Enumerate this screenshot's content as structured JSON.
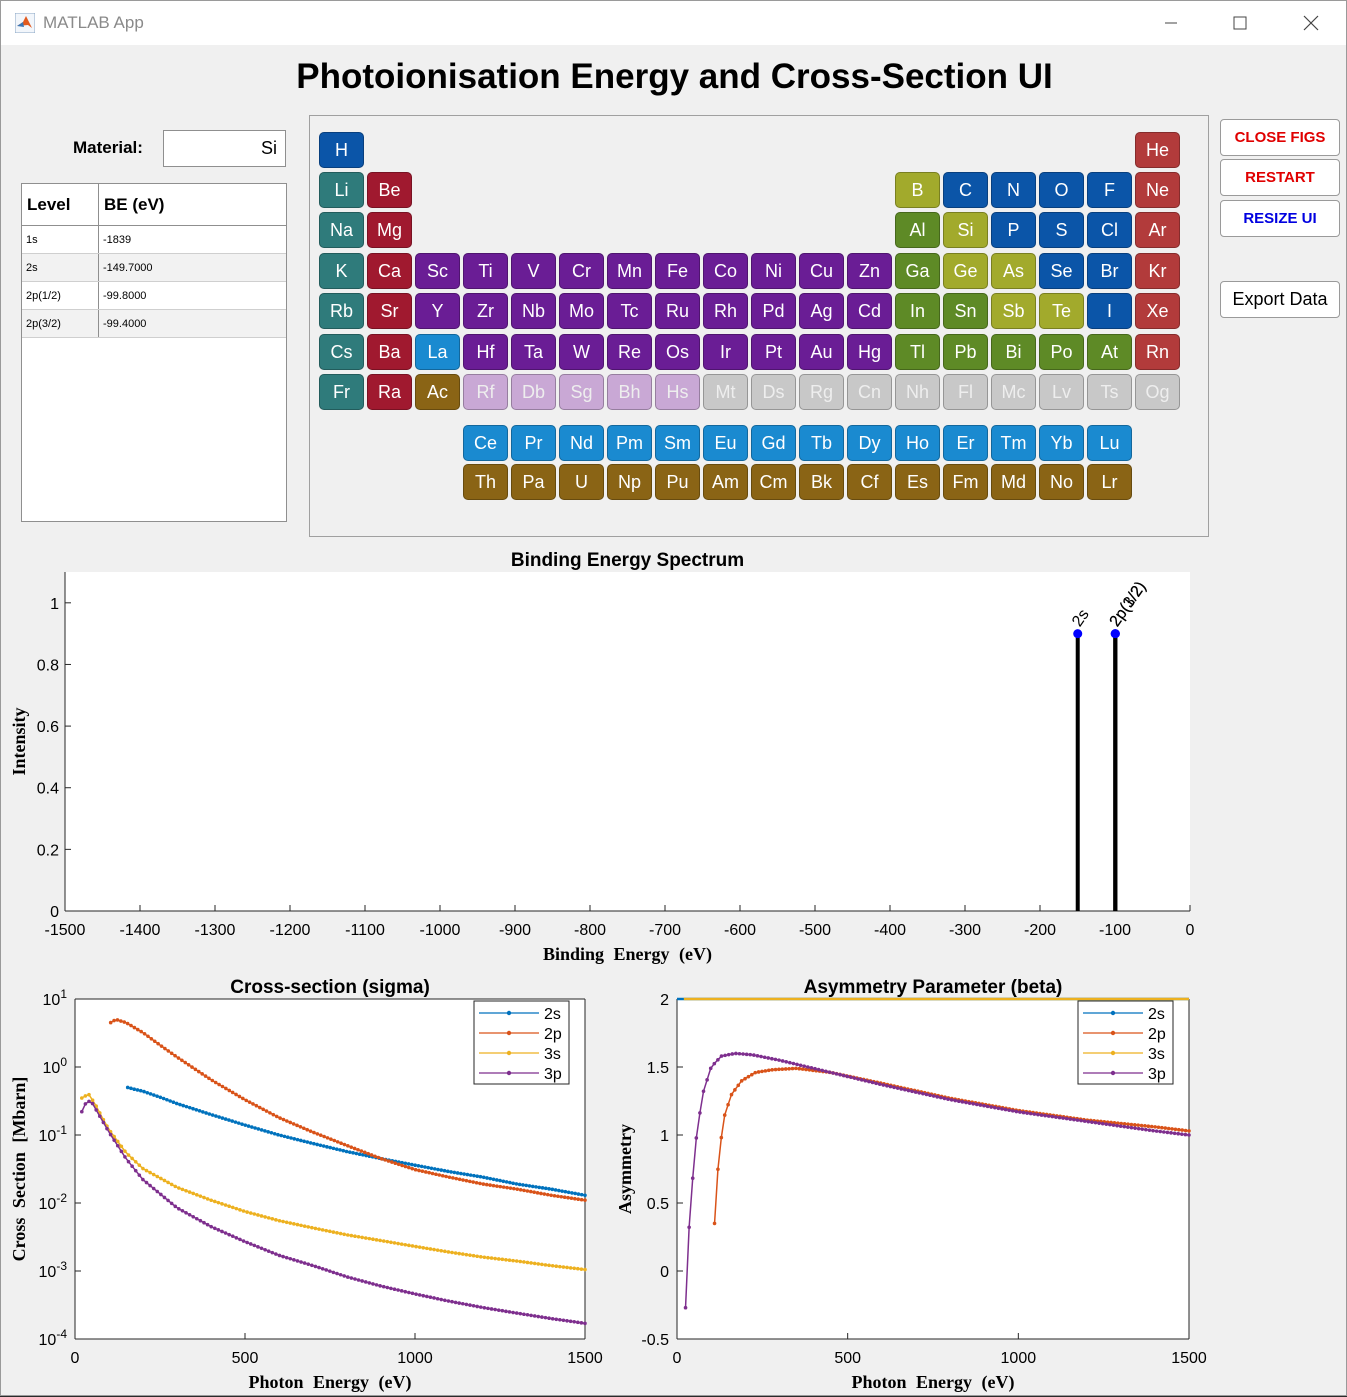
{
  "window": {
    "title": "MATLAB App"
  },
  "app": {
    "title": "Photoionisation Energy and Cross-Section UI"
  },
  "material": {
    "label": "Material:",
    "value": "Si"
  },
  "be_table": {
    "headers": [
      "Level",
      "BE (eV)"
    ],
    "rows": [
      [
        "1s",
        "-1839"
      ],
      [
        "2s",
        "-149.7000"
      ],
      [
        "2p(1/2)",
        "-99.8000"
      ],
      [
        "2p(3/2)",
        "-99.4000"
      ]
    ]
  },
  "buttons": {
    "close": "CLOSE FIGS",
    "restart": "RESTART",
    "resize": "RESIZE UI",
    "export": "Export Data"
  },
  "button_colors": {
    "close": "#e00000",
    "restart": "#e00000",
    "resize": "#0000e0",
    "export": "#000000"
  },
  "category_colors": {
    "nonmetal": "#0b55a8",
    "noble": "#b23b3b",
    "alkali": "#2f7b7b",
    "alkaline": "#a0192f",
    "transition": "#6a1d95",
    "posttransition": "#5e8a26",
    "metalloid": "#a2aa2c",
    "synthetic": "#c9a8d5",
    "unknown": "#c8c8c8",
    "lanthanide": "#1a8ad0",
    "actinide": "#8a6415"
  },
  "periodic_table": [
    {
      "s": "H",
      "row": 0,
      "col": 0,
      "cat": "nonmetal"
    },
    {
      "s": "He",
      "row": 0,
      "col": 17,
      "cat": "noble"
    },
    {
      "s": "Li",
      "row": 1,
      "col": 0,
      "cat": "alkali"
    },
    {
      "s": "Be",
      "row": 1,
      "col": 1,
      "cat": "alkaline"
    },
    {
      "s": "B",
      "row": 1,
      "col": 12,
      "cat": "metalloid"
    },
    {
      "s": "C",
      "row": 1,
      "col": 13,
      "cat": "nonmetal"
    },
    {
      "s": "N",
      "row": 1,
      "col": 14,
      "cat": "nonmetal"
    },
    {
      "s": "O",
      "row": 1,
      "col": 15,
      "cat": "nonmetal"
    },
    {
      "s": "F",
      "row": 1,
      "col": 16,
      "cat": "nonmetal"
    },
    {
      "s": "Ne",
      "row": 1,
      "col": 17,
      "cat": "noble"
    },
    {
      "s": "Na",
      "row": 2,
      "col": 0,
      "cat": "alkali"
    },
    {
      "s": "Mg",
      "row": 2,
      "col": 1,
      "cat": "alkaline"
    },
    {
      "s": "Al",
      "row": 2,
      "col": 12,
      "cat": "posttransition"
    },
    {
      "s": "Si",
      "row": 2,
      "col": 13,
      "cat": "metalloid"
    },
    {
      "s": "P",
      "row": 2,
      "col": 14,
      "cat": "nonmetal"
    },
    {
      "s": "S",
      "row": 2,
      "col": 15,
      "cat": "nonmetal"
    },
    {
      "s": "Cl",
      "row": 2,
      "col": 16,
      "cat": "nonmetal"
    },
    {
      "s": "Ar",
      "row": 2,
      "col": 17,
      "cat": "noble"
    },
    {
      "s": "K",
      "row": 3,
      "col": 0,
      "cat": "alkali"
    },
    {
      "s": "Ca",
      "row": 3,
      "col": 1,
      "cat": "alkaline"
    },
    {
      "s": "Sc",
      "row": 3,
      "col": 2,
      "cat": "transition"
    },
    {
      "s": "Ti",
      "row": 3,
      "col": 3,
      "cat": "transition"
    },
    {
      "s": "V",
      "row": 3,
      "col": 4,
      "cat": "transition"
    },
    {
      "s": "Cr",
      "row": 3,
      "col": 5,
      "cat": "transition"
    },
    {
      "s": "Mn",
      "row": 3,
      "col": 6,
      "cat": "transition"
    },
    {
      "s": "Fe",
      "row": 3,
      "col": 7,
      "cat": "transition"
    },
    {
      "s": "Co",
      "row": 3,
      "col": 8,
      "cat": "transition"
    },
    {
      "s": "Ni",
      "row": 3,
      "col": 9,
      "cat": "transition"
    },
    {
      "s": "Cu",
      "row": 3,
      "col": 10,
      "cat": "transition"
    },
    {
      "s": "Zn",
      "row": 3,
      "col": 11,
      "cat": "transition"
    },
    {
      "s": "Ga",
      "row": 3,
      "col": 12,
      "cat": "posttransition"
    },
    {
      "s": "Ge",
      "row": 3,
      "col": 13,
      "cat": "metalloid"
    },
    {
      "s": "As",
      "row": 3,
      "col": 14,
      "cat": "metalloid"
    },
    {
      "s": "Se",
      "row": 3,
      "col": 15,
      "cat": "nonmetal"
    },
    {
      "s": "Br",
      "row": 3,
      "col": 16,
      "cat": "nonmetal"
    },
    {
      "s": "Kr",
      "row": 3,
      "col": 17,
      "cat": "noble"
    },
    {
      "s": "Rb",
      "row": 4,
      "col": 0,
      "cat": "alkali"
    },
    {
      "s": "Sr",
      "row": 4,
      "col": 1,
      "cat": "alkaline"
    },
    {
      "s": "Y",
      "row": 4,
      "col": 2,
      "cat": "transition"
    },
    {
      "s": "Zr",
      "row": 4,
      "col": 3,
      "cat": "transition"
    },
    {
      "s": "Nb",
      "row": 4,
      "col": 4,
      "cat": "transition"
    },
    {
      "s": "Mo",
      "row": 4,
      "col": 5,
      "cat": "transition"
    },
    {
      "s": "Tc",
      "row": 4,
      "col": 6,
      "cat": "transition"
    },
    {
      "s": "Ru",
      "row": 4,
      "col": 7,
      "cat": "transition"
    },
    {
      "s": "Rh",
      "row": 4,
      "col": 8,
      "cat": "transition"
    },
    {
      "s": "Pd",
      "row": 4,
      "col": 9,
      "cat": "transition"
    },
    {
      "s": "Ag",
      "row": 4,
      "col": 10,
      "cat": "transition"
    },
    {
      "s": "Cd",
      "row": 4,
      "col": 11,
      "cat": "transition"
    },
    {
      "s": "In",
      "row": 4,
      "col": 12,
      "cat": "posttransition"
    },
    {
      "s": "Sn",
      "row": 4,
      "col": 13,
      "cat": "posttransition"
    },
    {
      "s": "Sb",
      "row": 4,
      "col": 14,
      "cat": "metalloid"
    },
    {
      "s": "Te",
      "row": 4,
      "col": 15,
      "cat": "metalloid"
    },
    {
      "s": "I",
      "row": 4,
      "col": 16,
      "cat": "nonmetal"
    },
    {
      "s": "Xe",
      "row": 4,
      "col": 17,
      "cat": "noble"
    },
    {
      "s": "Cs",
      "row": 5,
      "col": 0,
      "cat": "alkali"
    },
    {
      "s": "Ba",
      "row": 5,
      "col": 1,
      "cat": "alkaline"
    },
    {
      "s": "La",
      "row": 5,
      "col": 2,
      "cat": "lanthanide"
    },
    {
      "s": "Hf",
      "row": 5,
      "col": 3,
      "cat": "transition"
    },
    {
      "s": "Ta",
      "row": 5,
      "col": 4,
      "cat": "transition"
    },
    {
      "s": "W",
      "row": 5,
      "col": 5,
      "cat": "transition"
    },
    {
      "s": "Re",
      "row": 5,
      "col": 6,
      "cat": "transition"
    },
    {
      "s": "Os",
      "row": 5,
      "col": 7,
      "cat": "transition"
    },
    {
      "s": "Ir",
      "row": 5,
      "col": 8,
      "cat": "transition"
    },
    {
      "s": "Pt",
      "row": 5,
      "col": 9,
      "cat": "transition"
    },
    {
      "s": "Au",
      "row": 5,
      "col": 10,
      "cat": "transition"
    },
    {
      "s": "Hg",
      "row": 5,
      "col": 11,
      "cat": "transition"
    },
    {
      "s": "Tl",
      "row": 5,
      "col": 12,
      "cat": "posttransition"
    },
    {
      "s": "Pb",
      "row": 5,
      "col": 13,
      "cat": "posttransition"
    },
    {
      "s": "Bi",
      "row": 5,
      "col": 14,
      "cat": "posttransition"
    },
    {
      "s": "Po",
      "row": 5,
      "col": 15,
      "cat": "posttransition"
    },
    {
      "s": "At",
      "row": 5,
      "col": 16,
      "cat": "posttransition"
    },
    {
      "s": "Rn",
      "row": 5,
      "col": 17,
      "cat": "noble"
    },
    {
      "s": "Fr",
      "row": 6,
      "col": 0,
      "cat": "alkali"
    },
    {
      "s": "Ra",
      "row": 6,
      "col": 1,
      "cat": "alkaline"
    },
    {
      "s": "Ac",
      "row": 6,
      "col": 2,
      "cat": "actinide"
    },
    {
      "s": "Rf",
      "row": 6,
      "col": 3,
      "cat": "synthetic"
    },
    {
      "s": "Db",
      "row": 6,
      "col": 4,
      "cat": "synthetic"
    },
    {
      "s": "Sg",
      "row": 6,
      "col": 5,
      "cat": "synthetic"
    },
    {
      "s": "Bh",
      "row": 6,
      "col": 6,
      "cat": "synthetic"
    },
    {
      "s": "Hs",
      "row": 6,
      "col": 7,
      "cat": "synthetic"
    },
    {
      "s": "Mt",
      "row": 6,
      "col": 8,
      "cat": "unknown"
    },
    {
      "s": "Ds",
      "row": 6,
      "col": 9,
      "cat": "unknown"
    },
    {
      "s": "Rg",
      "row": 6,
      "col": 10,
      "cat": "unknown"
    },
    {
      "s": "Cn",
      "row": 6,
      "col": 11,
      "cat": "unknown"
    },
    {
      "s": "Nh",
      "row": 6,
      "col": 12,
      "cat": "unknown"
    },
    {
      "s": "Fl",
      "row": 6,
      "col": 13,
      "cat": "unknown"
    },
    {
      "s": "Mc",
      "row": 6,
      "col": 14,
      "cat": "unknown"
    },
    {
      "s": "Lv",
      "row": 6,
      "col": 15,
      "cat": "unknown"
    },
    {
      "s": "Ts",
      "row": 6,
      "col": 16,
      "cat": "unknown"
    },
    {
      "s": "Og",
      "row": 6,
      "col": 17,
      "cat": "unknown"
    },
    {
      "s": "Ce",
      "row": 8,
      "col": 3,
      "cat": "lanthanide"
    },
    {
      "s": "Pr",
      "row": 8,
      "col": 4,
      "cat": "lanthanide"
    },
    {
      "s": "Nd",
      "row": 8,
      "col": 5,
      "cat": "lanthanide"
    },
    {
      "s": "Pm",
      "row": 8,
      "col": 6,
      "cat": "lanthanide"
    },
    {
      "s": "Sm",
      "row": 8,
      "col": 7,
      "cat": "lanthanide"
    },
    {
      "s": "Eu",
      "row": 8,
      "col": 8,
      "cat": "lanthanide"
    },
    {
      "s": "Gd",
      "row": 8,
      "col": 9,
      "cat": "lanthanide"
    },
    {
      "s": "Tb",
      "row": 8,
      "col": 10,
      "cat": "lanthanide"
    },
    {
      "s": "Dy",
      "row": 8,
      "col": 11,
      "cat": "lanthanide"
    },
    {
      "s": "Ho",
      "row": 8,
      "col": 12,
      "cat": "lanthanide"
    },
    {
      "s": "Er",
      "row": 8,
      "col": 13,
      "cat": "lanthanide"
    },
    {
      "s": "Tm",
      "row": 8,
      "col": 14,
      "cat": "lanthanide"
    },
    {
      "s": "Yb",
      "row": 8,
      "col": 15,
      "cat": "lanthanide"
    },
    {
      "s": "Lu",
      "row": 8,
      "col": 16,
      "cat": "lanthanide"
    },
    {
      "s": "Th",
      "row": 9,
      "col": 3,
      "cat": "actinide"
    },
    {
      "s": "Pa",
      "row": 9,
      "col": 4,
      "cat": "actinide"
    },
    {
      "s": "U",
      "row": 9,
      "col": 5,
      "cat": "actinide"
    },
    {
      "s": "Np",
      "row": 9,
      "col": 6,
      "cat": "actinide"
    },
    {
      "s": "Pu",
      "row": 9,
      "col": 7,
      "cat": "actinide"
    },
    {
      "s": "Am",
      "row": 9,
      "col": 8,
      "cat": "actinide"
    },
    {
      "s": "Cm",
      "row": 9,
      "col": 9,
      "cat": "actinide"
    },
    {
      "s": "Bk",
      "row": 9,
      "col": 10,
      "cat": "actinide"
    },
    {
      "s": "Cf",
      "row": 9,
      "col": 11,
      "cat": "actinide"
    },
    {
      "s": "Es",
      "row": 9,
      "col": 12,
      "cat": "actinide"
    },
    {
      "s": "Fm",
      "row": 9,
      "col": 13,
      "cat": "actinide"
    },
    {
      "s": "Md",
      "row": 9,
      "col": 14,
      "cat": "actinide"
    },
    {
      "s": "No",
      "row": 9,
      "col": 15,
      "cat": "actinide"
    },
    {
      "s": "Lr",
      "row": 9,
      "col": 16,
      "cat": "actinide"
    }
  ],
  "chart_data": [
    {
      "type": "bar",
      "title": "Binding Energy Spectrum",
      "xlabel": "Binding Energy (eV)",
      "ylabel": "Intensity",
      "xlim": [
        -1500,
        0
      ],
      "ylim": [
        0,
        1.1
      ],
      "xticks": [
        -1500,
        -1400,
        -1300,
        -1200,
        -1100,
        -1000,
        -900,
        -800,
        -700,
        -600,
        -500,
        -400,
        -300,
        -200,
        -100,
        0
      ],
      "yticks": [
        0,
        0.2,
        0.4,
        0.6,
        0.8,
        1
      ],
      "peaks": [
        {
          "x": -149.7,
          "y": 0.9,
          "label": "2s"
        },
        {
          "x": -99.8,
          "y": 0.9,
          "label": "2p(1/2)"
        },
        {
          "x": -99.4,
          "y": 0.9,
          "label": "2p(3/2)"
        }
      ],
      "color": "#000000",
      "marker_color": "#0000ff",
      "grid": false
    },
    {
      "type": "line",
      "title": "Cross-section (sigma)",
      "xlabel": "Photon Energy (eV)",
      "ylabel": "Cross Section [Mbarn]",
      "xlim": [
        0,
        1500
      ],
      "ylim": [
        0.0001,
        10
      ],
      "yscale": "log",
      "xticks": [
        0,
        500,
        1000,
        1500
      ],
      "ytick_labels": [
        "10-4",
        "10-3",
        "10-2",
        "10-1",
        "100",
        "101"
      ],
      "legend_position": "top-right",
      "series": [
        {
          "name": "2s",
          "color": "#0072bd",
          "x": [
            155,
            175,
            200,
            250,
            300,
            400,
            500,
            600,
            700,
            800,
            900,
            1000,
            1100,
            1200,
            1300,
            1400,
            1500
          ],
          "y": [
            0.5,
            0.47,
            0.44,
            0.36,
            0.29,
            0.2,
            0.14,
            0.1,
            0.075,
            0.057,
            0.045,
            0.036,
            0.029,
            0.024,
            0.019,
            0.016,
            0.013
          ]
        },
        {
          "name": "2p",
          "color": "#d95319",
          "x": [
            105,
            120,
            150,
            200,
            250,
            300,
            400,
            500,
            600,
            700,
            800,
            900,
            1000,
            1100,
            1200,
            1300,
            1400,
            1500
          ],
          "y": [
            4.5,
            5,
            4.5,
            3.2,
            2.1,
            1.4,
            0.65,
            0.33,
            0.18,
            0.11,
            0.07,
            0.045,
            0.031,
            0.024,
            0.019,
            0.016,
            0.013,
            0.011
          ]
        },
        {
          "name": "3s",
          "color": "#edb120",
          "x": [
            20,
            40,
            60,
            80,
            100,
            150,
            200,
            300,
            400,
            500,
            600,
            700,
            800,
            900,
            1000,
            1100,
            1200,
            1300,
            1400,
            1500
          ],
          "y": [
            0.35,
            0.4,
            0.28,
            0.18,
            0.12,
            0.055,
            0.032,
            0.017,
            0.011,
            0.0075,
            0.0055,
            0.0043,
            0.0034,
            0.0028,
            0.0023,
            0.0019,
            0.0016,
            0.0014,
            0.0012,
            0.00105
          ]
        },
        {
          "name": "3p",
          "color": "#7e2f8e",
          "x": [
            20,
            35,
            50,
            70,
            100,
            150,
            200,
            300,
            400,
            500,
            600,
            700,
            800,
            900,
            1000,
            1100,
            1200,
            1300,
            1400,
            1500
          ],
          "y": [
            0.22,
            0.32,
            0.3,
            0.2,
            0.11,
            0.045,
            0.022,
            0.0085,
            0.0045,
            0.0027,
            0.0017,
            0.0012,
            0.00082,
            0.0006,
            0.00046,
            0.00036,
            0.00029,
            0.00024,
            0.0002,
            0.00017
          ]
        }
      ]
    },
    {
      "type": "line",
      "title": "Asymmetry Parameter (beta)",
      "xlabel": "Photon Energy (eV)",
      "ylabel": "Asymmetry",
      "xlim": [
        0,
        1500
      ],
      "ylim": [
        -0.5,
        2
      ],
      "xticks": [
        0,
        500,
        1000,
        1500
      ],
      "yticks": [
        -0.5,
        0,
        0.5,
        1,
        1.5,
        2
      ],
      "legend_position": "top-right",
      "series": [
        {
          "name": "2s",
          "color": "#0072bd",
          "x": [
            0,
            1500
          ],
          "y": [
            2,
            2
          ]
        },
        {
          "name": "2p",
          "color": "#d95319",
          "x": [
            110,
            115,
            125,
            140,
            160,
            190,
            230,
            280,
            350,
            450,
            600,
            800,
            1000,
            1200,
            1400,
            1500
          ],
          "y": [
            0.35,
            0.6,
            0.9,
            1.15,
            1.3,
            1.4,
            1.46,
            1.48,
            1.49,
            1.46,
            1.38,
            1.27,
            1.18,
            1.11,
            1.06,
            1.03
          ]
        },
        {
          "name": "3s",
          "color": "#edb120",
          "x": [
            20,
            1500
          ],
          "y": [
            2,
            2
          ]
        },
        {
          "name": "3p",
          "color": "#7e2f8e",
          "x": [
            25,
            30,
            40,
            55,
            75,
            100,
            130,
            170,
            220,
            300,
            400,
            600,
            800,
            1000,
            1200,
            1400,
            1500
          ],
          "y": [
            -0.27,
            0.1,
            0.5,
            0.95,
            1.3,
            1.5,
            1.58,
            1.6,
            1.59,
            1.55,
            1.49,
            1.37,
            1.26,
            1.17,
            1.1,
            1.03,
            1.0
          ]
        }
      ]
    }
  ]
}
